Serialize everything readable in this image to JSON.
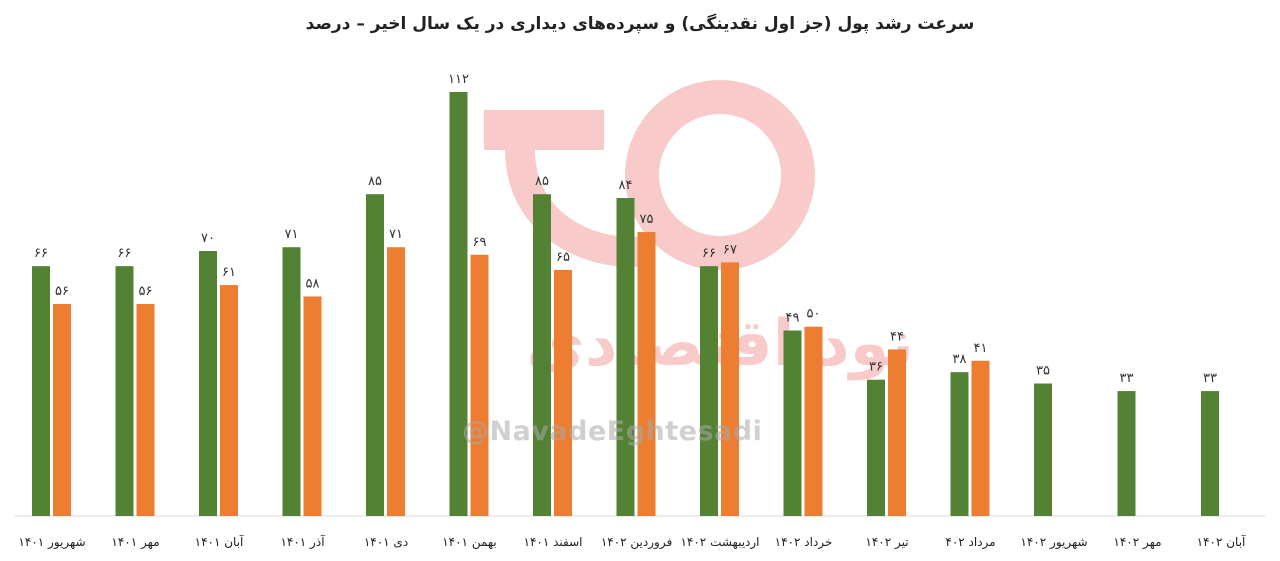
{
  "title": "سرعت رشد پول (جز اول نقدینگی) و سپرده‌های دیداری در یک سال اخیر – درصد",
  "watermark": {
    "handle": "@NavadeEghtesadi",
    "logo_text": "نود اقتصادی",
    "color": "#f28b8b"
  },
  "colors": {
    "green": "#548235",
    "orange": "#ed7d31",
    "axis": "#d9d9d9"
  },
  "chart_data": {
    "type": "bar",
    "categories": [
      "شهریور ۱۴۰۱",
      "مهر ۱۴۰۱",
      "آبان ۱۴۰۱",
      "آذر ۱۴۰۱",
      "دی ۱۴۰۱",
      "بهمن ۱۴۰۱",
      "اسفند ۱۴۰۱",
      "فروردین ۱۴۰۲",
      "اردیبهشت ۱۴۰۲",
      "خرداد ۱۴۰۲",
      "تیر ۱۴۰۲",
      "مرداد ۴۰۲",
      "شهریور ۱۴۰۲",
      "مهر ۱۴۰۲",
      "آبان ۱۴۰۲"
    ],
    "series": [
      {
        "color": "#548235",
        "values": [
          66,
          66,
          70,
          71,
          85,
          112,
          85,
          84,
          66,
          49,
          36,
          38,
          35,
          33,
          33
        ],
        "labels": [
          "۶۶",
          "۶۶",
          "۷۰",
          "۷۱",
          "۸۵",
          "۱۱۲",
          "۸۵",
          "۸۴",
          "۶۶",
          "۴۹",
          "۳۶",
          "۳۸",
          "۳۵",
          "۳۳",
          "۳۳"
        ]
      },
      {
        "color": "#ed7d31",
        "values": [
          56,
          56,
          61,
          58,
          71,
          69,
          65,
          75,
          67,
          50,
          44,
          41,
          null,
          null,
          null
        ],
        "labels": [
          "۵۶",
          "۵۶",
          "۶۱",
          "۵۸",
          "۷۱",
          "۶۹",
          "۶۵",
          "۷۵",
          "۶۷",
          "۵۰",
          "۴۴",
          "۴۱",
          "",
          "",
          ""
        ]
      }
    ],
    "ylim": [
      0,
      115
    ],
    "grid": false,
    "legend": "none"
  }
}
